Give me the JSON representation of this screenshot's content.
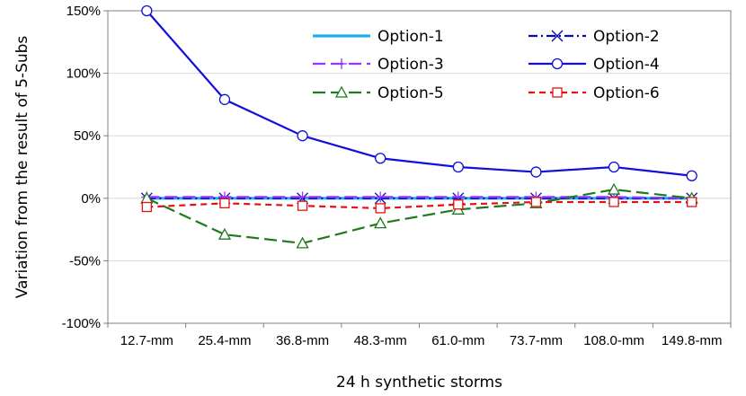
{
  "chart_data": {
    "type": "line",
    "title": "",
    "xlabel": "24 h synthetic storms",
    "ylabel": "Variation from the result of 5-Subs",
    "categories": [
      "12.7-mm",
      "25.4-mm",
      "36.8-mm",
      "48.3-mm",
      "61.0-mm",
      "73.7-mm",
      "108.0-mm",
      "149.8-mm"
    ],
    "ylim": [
      -100,
      150
    ],
    "yticks": [
      -100,
      -50,
      0,
      50,
      100,
      150
    ],
    "ytick_labels": [
      "-100%",
      "-50%",
      "0%",
      "50%",
      "100%",
      "150%"
    ],
    "grid": "horizontal",
    "legend_position": "top-right",
    "series": [
      {
        "name": "Option-1",
        "color": "#1fb0e8",
        "marker": "none",
        "dash": "solid",
        "values": [
          0,
          0,
          0,
          0,
          0,
          0,
          0,
          0
        ]
      },
      {
        "name": "Option-2",
        "color": "#0a0aa8",
        "marker": "x",
        "dash": "dashdot",
        "values": [
          0,
          0,
          0,
          0,
          0,
          0,
          0,
          0
        ]
      },
      {
        "name": "Option-3",
        "color": "#9933ff",
        "marker": "plus",
        "dash": "longdash",
        "values": [
          1,
          1,
          1,
          1,
          1,
          1,
          1,
          0
        ]
      },
      {
        "name": "Option-4",
        "color": "#1010d8",
        "marker": "circle",
        "dash": "solid",
        "values": [
          150,
          79,
          50,
          32,
          25,
          21,
          25,
          18
        ]
      },
      {
        "name": "Option-5",
        "color": "#1f7a1f",
        "marker": "triangle",
        "dash": "longdash",
        "values": [
          0,
          -29,
          -36,
          -20,
          -9,
          -4,
          7,
          0
        ]
      },
      {
        "name": "Option-6",
        "color": "#e81010",
        "marker": "square",
        "dash": "shortdash",
        "values": [
          -7,
          -4,
          -6,
          -8,
          -5,
          -3,
          -3,
          -3
        ]
      }
    ]
  }
}
